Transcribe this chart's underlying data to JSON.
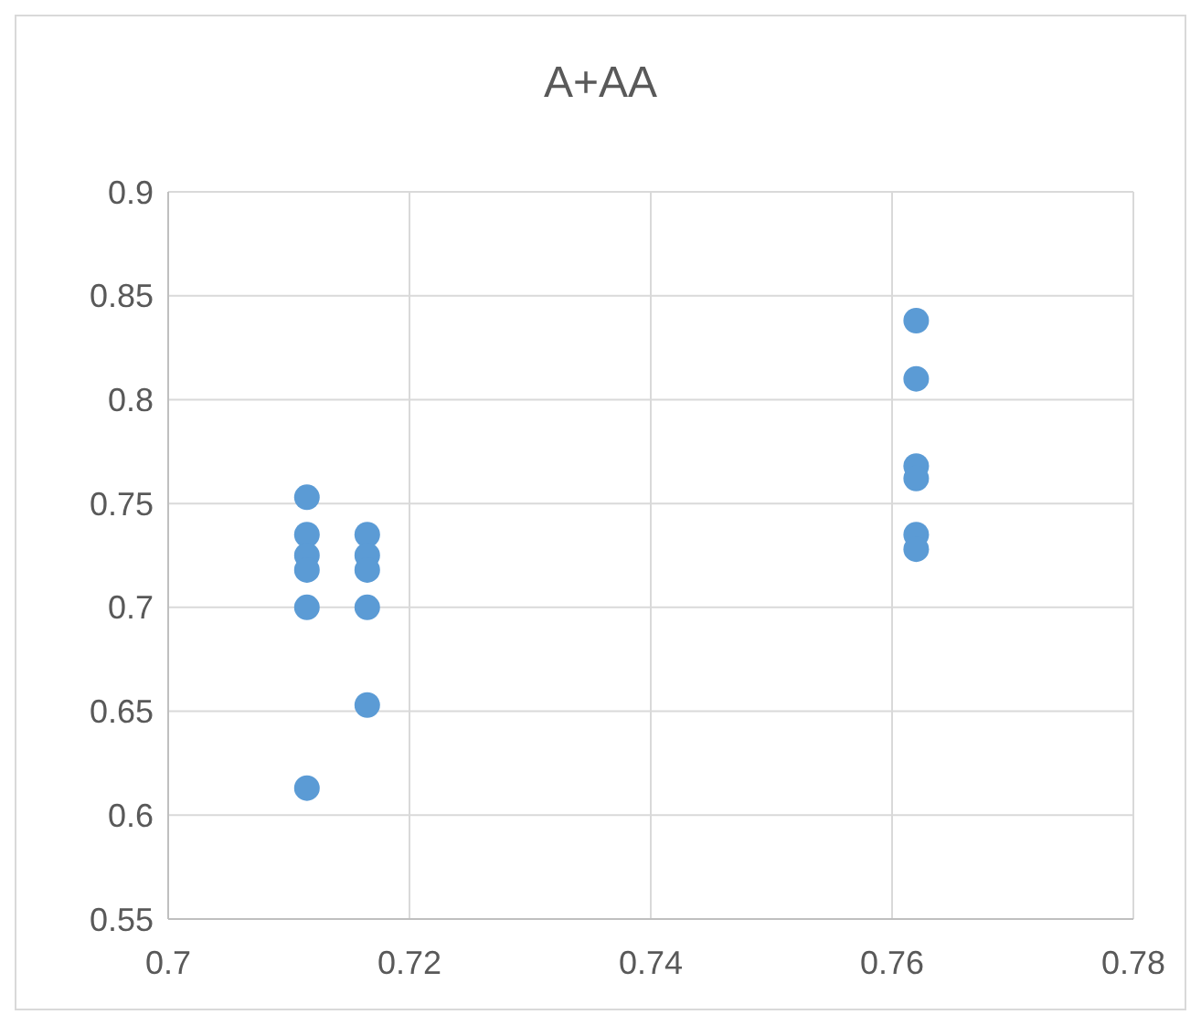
{
  "chart_data": {
    "type": "scatter",
    "title": "A+AA",
    "x": [
      0.7115,
      0.7115,
      0.7115,
      0.7115,
      0.7115,
      0.7115,
      0.7165,
      0.7165,
      0.7165,
      0.7165,
      0.7165,
      0.762,
      0.762,
      0.762,
      0.762,
      0.762,
      0.762
    ],
    "series": [
      {
        "color": "#5b9bd5",
        "values": [
          0.753,
          0.735,
          0.725,
          0.718,
          0.7,
          0.613,
          0.735,
          0.725,
          0.718,
          0.7,
          0.653,
          0.838,
          0.81,
          0.768,
          0.762,
          0.735,
          0.728
        ]
      }
    ],
    "xlim": [
      0.7,
      0.78
    ],
    "xticks": [
      0.7,
      0.72,
      0.74,
      0.76,
      0.78
    ],
    "ylim": [
      0.55,
      0.9
    ],
    "yticks": [
      0.55,
      0.6,
      0.65,
      0.7,
      0.75,
      0.8,
      0.85,
      0.9
    ],
    "grid": true,
    "marker": "circle"
  }
}
